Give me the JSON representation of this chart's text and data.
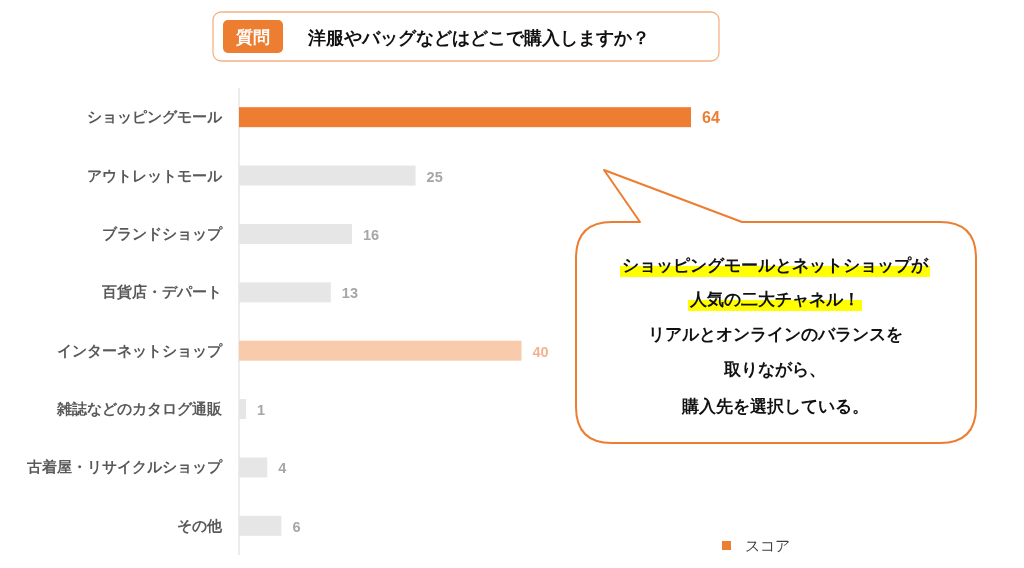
{
  "chart_data": {
    "type": "bar",
    "orientation": "horizontal",
    "title": "洋服やバッグなどはどこで購入しますか？",
    "annotations": [
      "質問",
      "ショッピングモールとネットショップが",
      "人気の二大チャネル！",
      "リアルとオンラインのバランスを",
      "取りながら、",
      "購入先を選択している。"
    ],
    "categories": [
      "ショッピングモール",
      "アウトレットモール",
      "ブランドショップ",
      "百貨店・デパート",
      "インターネットショップ",
      "雑誌などのカタログ通販",
      "古着屋・リサイクルショップ",
      "その他"
    ],
    "series": [
      {
        "name": "スコア",
        "color": "#ed7d31",
        "colors": [
          "#ed7d31",
          "#e6e6e6",
          "#e6e6e6",
          "#e6e6e6",
          "#f8cbad",
          "#e6e6e6",
          "#e6e6e6",
          "#e6e6e6"
        ],
        "values": [
          64,
          25,
          16,
          13,
          40,
          1,
          4,
          6
        ]
      }
    ],
    "data_labels": true,
    "tick_labels": "y",
    "legend": "bottom right"
  }
}
